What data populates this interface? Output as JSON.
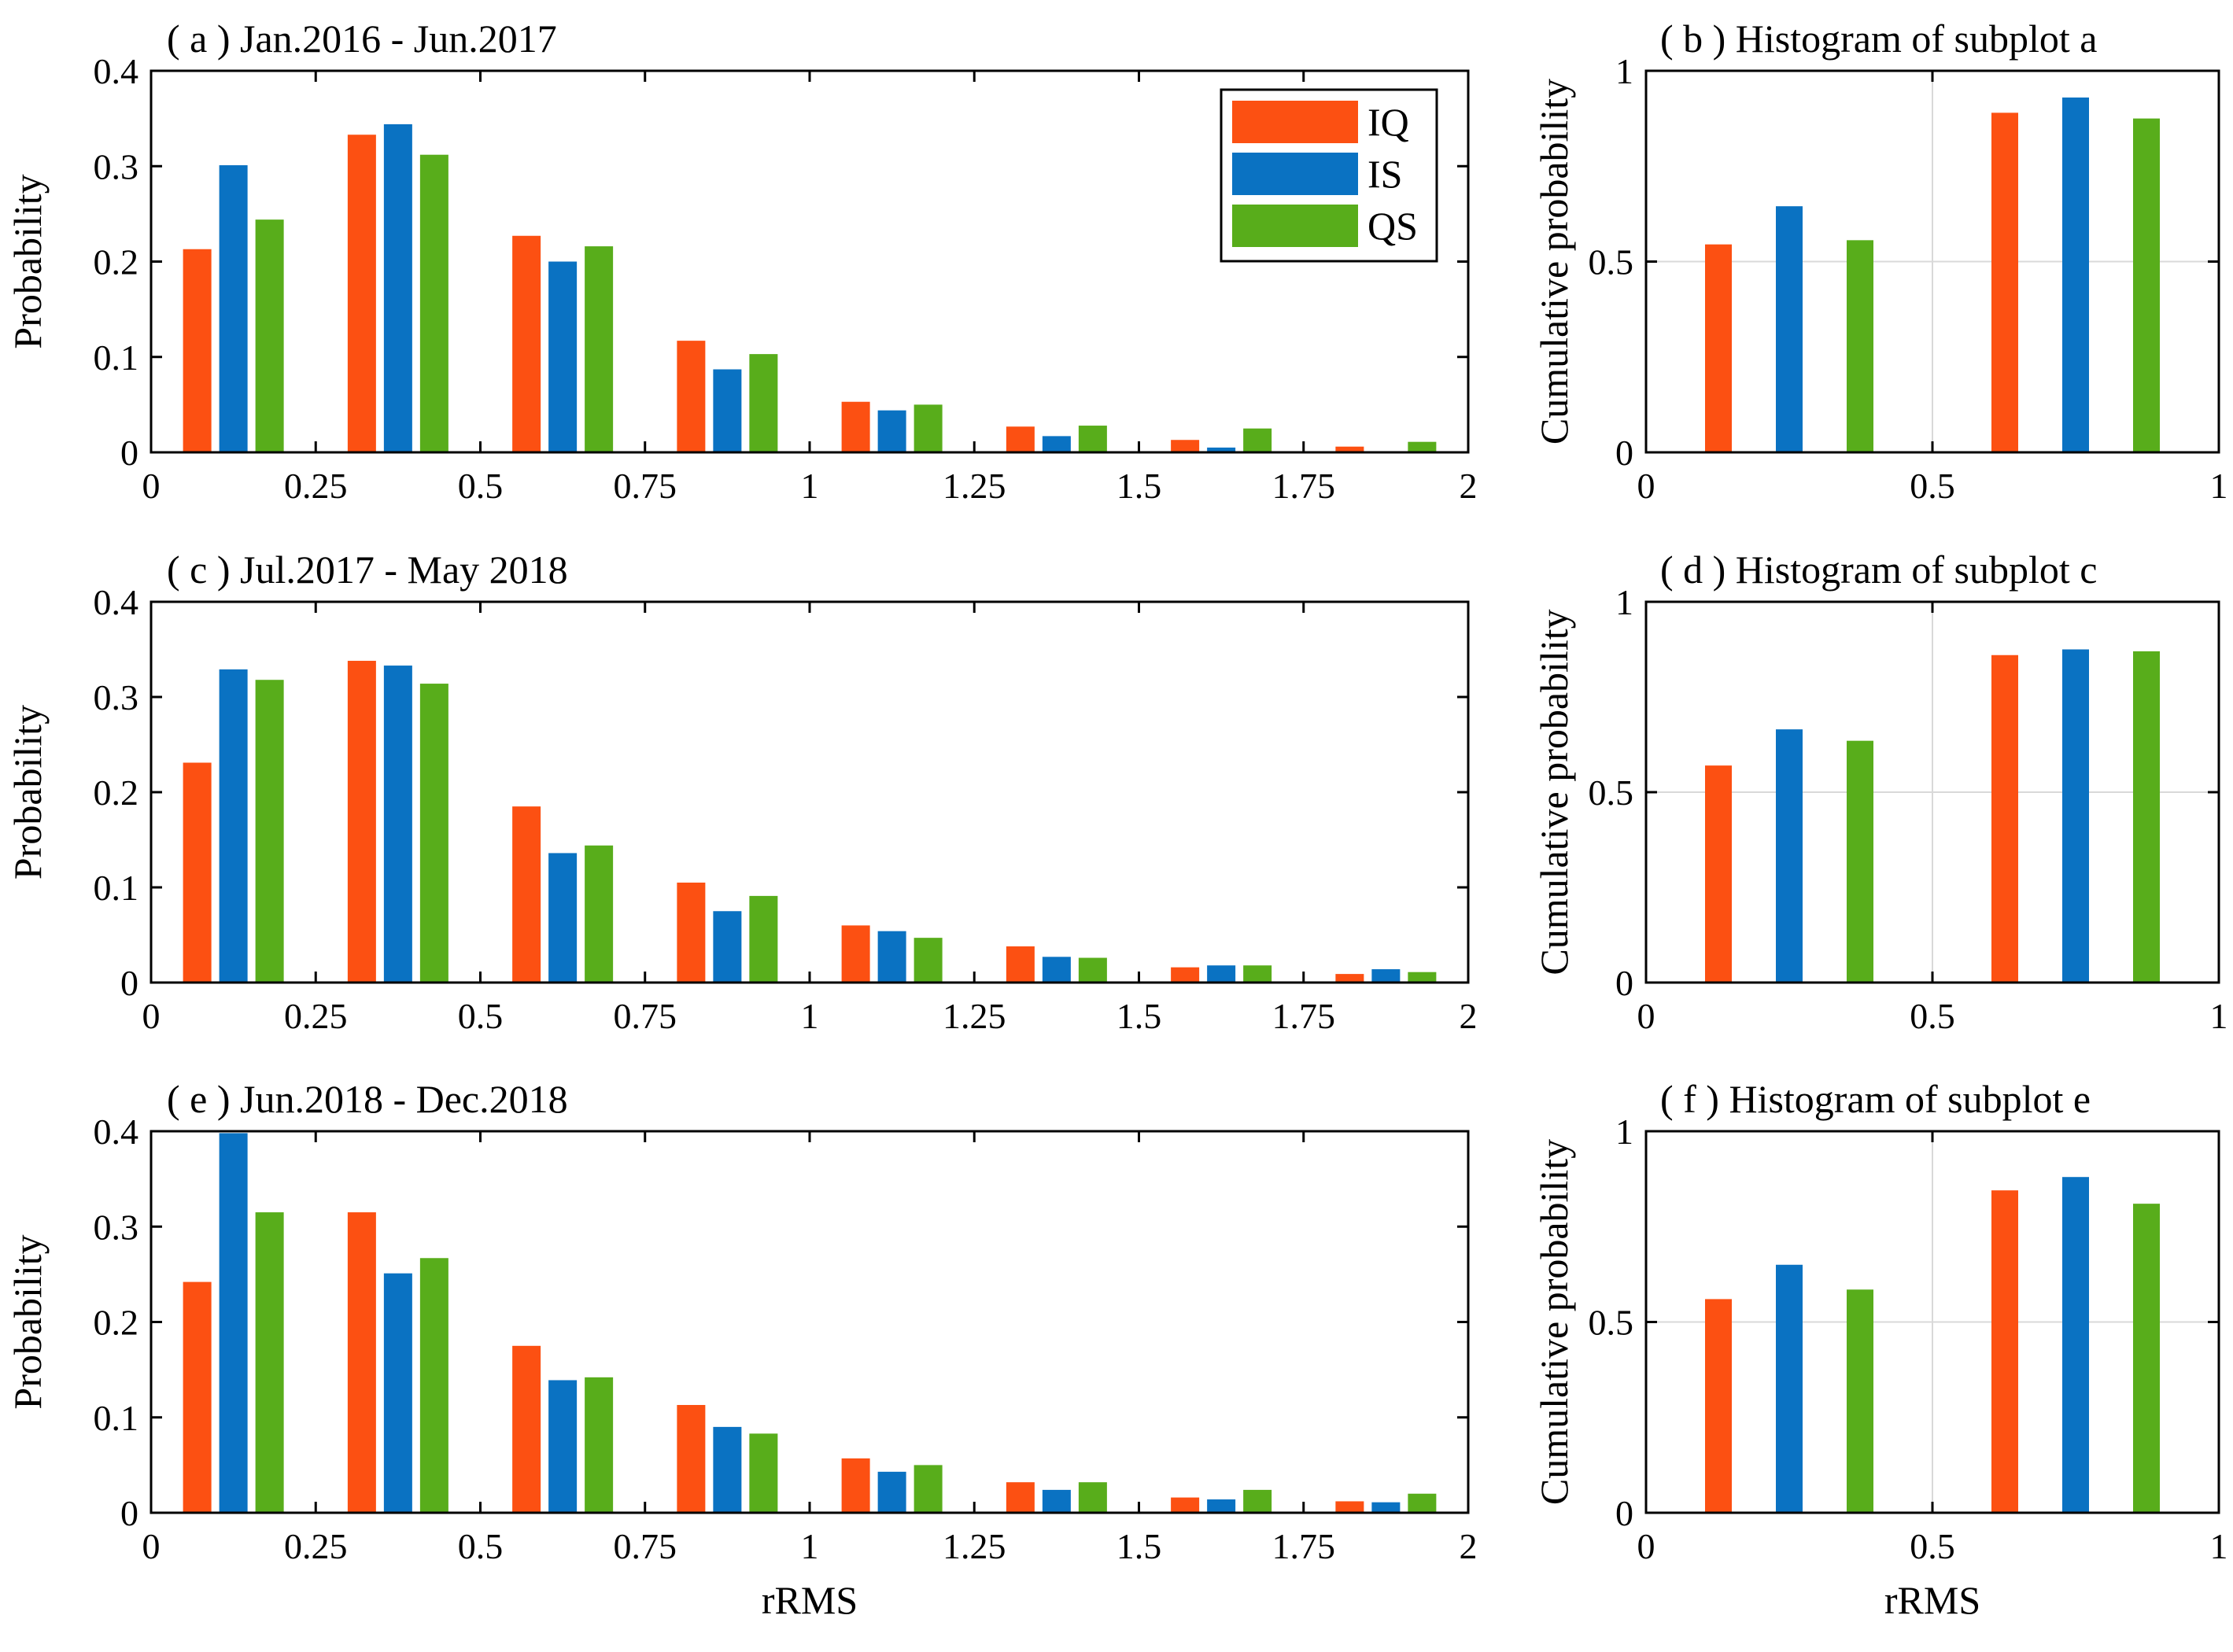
{
  "colors": {
    "IQ": "#fc5012",
    "IS": "#0a72c2",
    "QS": "#58ad1b",
    "grid": "#d9d9d9",
    "axis": "#000000"
  },
  "legend": {
    "entries": [
      "IQ",
      "IS",
      "QS"
    ],
    "position": "top-right of subplot a"
  },
  "xlabel": "rRMS",
  "chart_data": [
    {
      "id": "a",
      "type": "bar",
      "title": "( a ) Jan.2016 - Jun.2017",
      "xlabel": "",
      "ylabel": "Probability",
      "xlim": [
        0,
        2
      ],
      "ylim": [
        0,
        0.4
      ],
      "xticks": [
        "0",
        "0.25",
        "0.5",
        "0.75",
        "1",
        "1.25",
        "1.5",
        "1.75",
        "2"
      ],
      "yticks": [
        "0",
        "0.1",
        "0.2",
        "0.3",
        "0.4"
      ],
      "categories": [
        0.125,
        0.375,
        0.625,
        0.875,
        1.125,
        1.375,
        1.625,
        1.875
      ],
      "series": [
        {
          "name": "IQ",
          "values": [
            0.213,
            0.333,
            0.227,
            0.117,
            0.053,
            0.027,
            0.013,
            0.006
          ]
        },
        {
          "name": "IS",
          "values": [
            0.301,
            0.344,
            0.2,
            0.087,
            0.044,
            0.017,
            0.005,
            0.0
          ]
        },
        {
          "name": "QS",
          "values": [
            0.244,
            0.312,
            0.216,
            0.103,
            0.05,
            0.028,
            0.025,
            0.011
          ]
        }
      ]
    },
    {
      "id": "b",
      "type": "bar",
      "title": "( b ) Histogram of subplot a",
      "xlabel": "",
      "ylabel": "Cumulative probability",
      "xlim": [
        0,
        1
      ],
      "ylim": [
        0,
        1
      ],
      "grid": true,
      "xticks": [
        "0",
        "0.5",
        "1"
      ],
      "yticks": [
        "0",
        "0.5",
        "1"
      ],
      "categories": [
        0.25,
        0.75
      ],
      "series": [
        {
          "name": "IQ",
          "values": [
            0.545,
            0.89
          ]
        },
        {
          "name": "IS",
          "values": [
            0.645,
            0.93
          ]
        },
        {
          "name": "QS",
          "values": [
            0.556,
            0.875
          ]
        }
      ]
    },
    {
      "id": "c",
      "type": "bar",
      "title": "( c ) Jul.2017 - May 2018",
      "xlabel": "",
      "ylabel": "Probability",
      "xlim": [
        0,
        2
      ],
      "ylim": [
        0,
        0.4
      ],
      "xticks": [
        "0",
        "0.25",
        "0.5",
        "0.75",
        "1",
        "1.25",
        "1.5",
        "1.75",
        "2"
      ],
      "yticks": [
        "0",
        "0.1",
        "0.2",
        "0.3",
        "0.4"
      ],
      "categories": [
        0.125,
        0.375,
        0.625,
        0.875,
        1.125,
        1.375,
        1.625,
        1.875
      ],
      "series": [
        {
          "name": "IQ",
          "values": [
            0.231,
            0.338,
            0.185,
            0.105,
            0.06,
            0.038,
            0.016,
            0.009
          ]
        },
        {
          "name": "IS",
          "values": [
            0.329,
            0.333,
            0.136,
            0.075,
            0.054,
            0.027,
            0.018,
            0.014
          ]
        },
        {
          "name": "QS",
          "values": [
            0.318,
            0.314,
            0.144,
            0.091,
            0.047,
            0.026,
            0.018,
            0.011
          ]
        }
      ]
    },
    {
      "id": "d",
      "type": "bar",
      "title": "( d ) Histogram of subplot c",
      "xlabel": "",
      "ylabel": "Cumulative probability",
      "xlim": [
        0,
        1
      ],
      "ylim": [
        0,
        1
      ],
      "grid": true,
      "xticks": [
        "0",
        "0.5",
        "1"
      ],
      "yticks": [
        "0",
        "0.5",
        "1"
      ],
      "categories": [
        0.25,
        0.75
      ],
      "series": [
        {
          "name": "IQ",
          "values": [
            0.57,
            0.86
          ]
        },
        {
          "name": "IS",
          "values": [
            0.665,
            0.875
          ]
        },
        {
          "name": "QS",
          "values": [
            0.635,
            0.87
          ]
        }
      ]
    },
    {
      "id": "e",
      "type": "bar",
      "title": "( e ) Jun.2018 - Dec.2018",
      "xlabel": "rRMS",
      "ylabel": "Probability",
      "xlim": [
        0,
        2
      ],
      "ylim": [
        0,
        0.4
      ],
      "xticks": [
        "0",
        "0.25",
        "0.5",
        "0.75",
        "1",
        "1.25",
        "1.5",
        "1.75",
        "2"
      ],
      "yticks": [
        "0",
        "0.1",
        "0.2",
        "0.3",
        "0.4"
      ],
      "categories": [
        0.125,
        0.375,
        0.625,
        0.875,
        1.125,
        1.375,
        1.625,
        1.875
      ],
      "series": [
        {
          "name": "IQ",
          "values": [
            0.242,
            0.315,
            0.175,
            0.113,
            0.057,
            0.032,
            0.016,
            0.012
          ]
        },
        {
          "name": "IS",
          "values": [
            0.398,
            0.251,
            0.139,
            0.09,
            0.043,
            0.024,
            0.014,
            0.011
          ]
        },
        {
          "name": "QS",
          "values": [
            0.315,
            0.267,
            0.142,
            0.083,
            0.05,
            0.032,
            0.024,
            0.02
          ]
        }
      ]
    },
    {
      "id": "f",
      "type": "bar",
      "title": "( f ) Histogram of subplot e",
      "xlabel": "rRMS",
      "ylabel": "Cumulative probability",
      "xlim": [
        0,
        1
      ],
      "ylim": [
        0,
        1
      ],
      "grid": true,
      "xticks": [
        "0",
        "0.5",
        "1"
      ],
      "yticks": [
        "0",
        "0.5",
        "1"
      ],
      "categories": [
        0.25,
        0.75
      ],
      "series": [
        {
          "name": "IQ",
          "values": [
            0.56,
            0.845
          ]
        },
        {
          "name": "IS",
          "values": [
            0.65,
            0.88
          ]
        },
        {
          "name": "QS",
          "values": [
            0.585,
            0.81
          ]
        }
      ]
    }
  ]
}
